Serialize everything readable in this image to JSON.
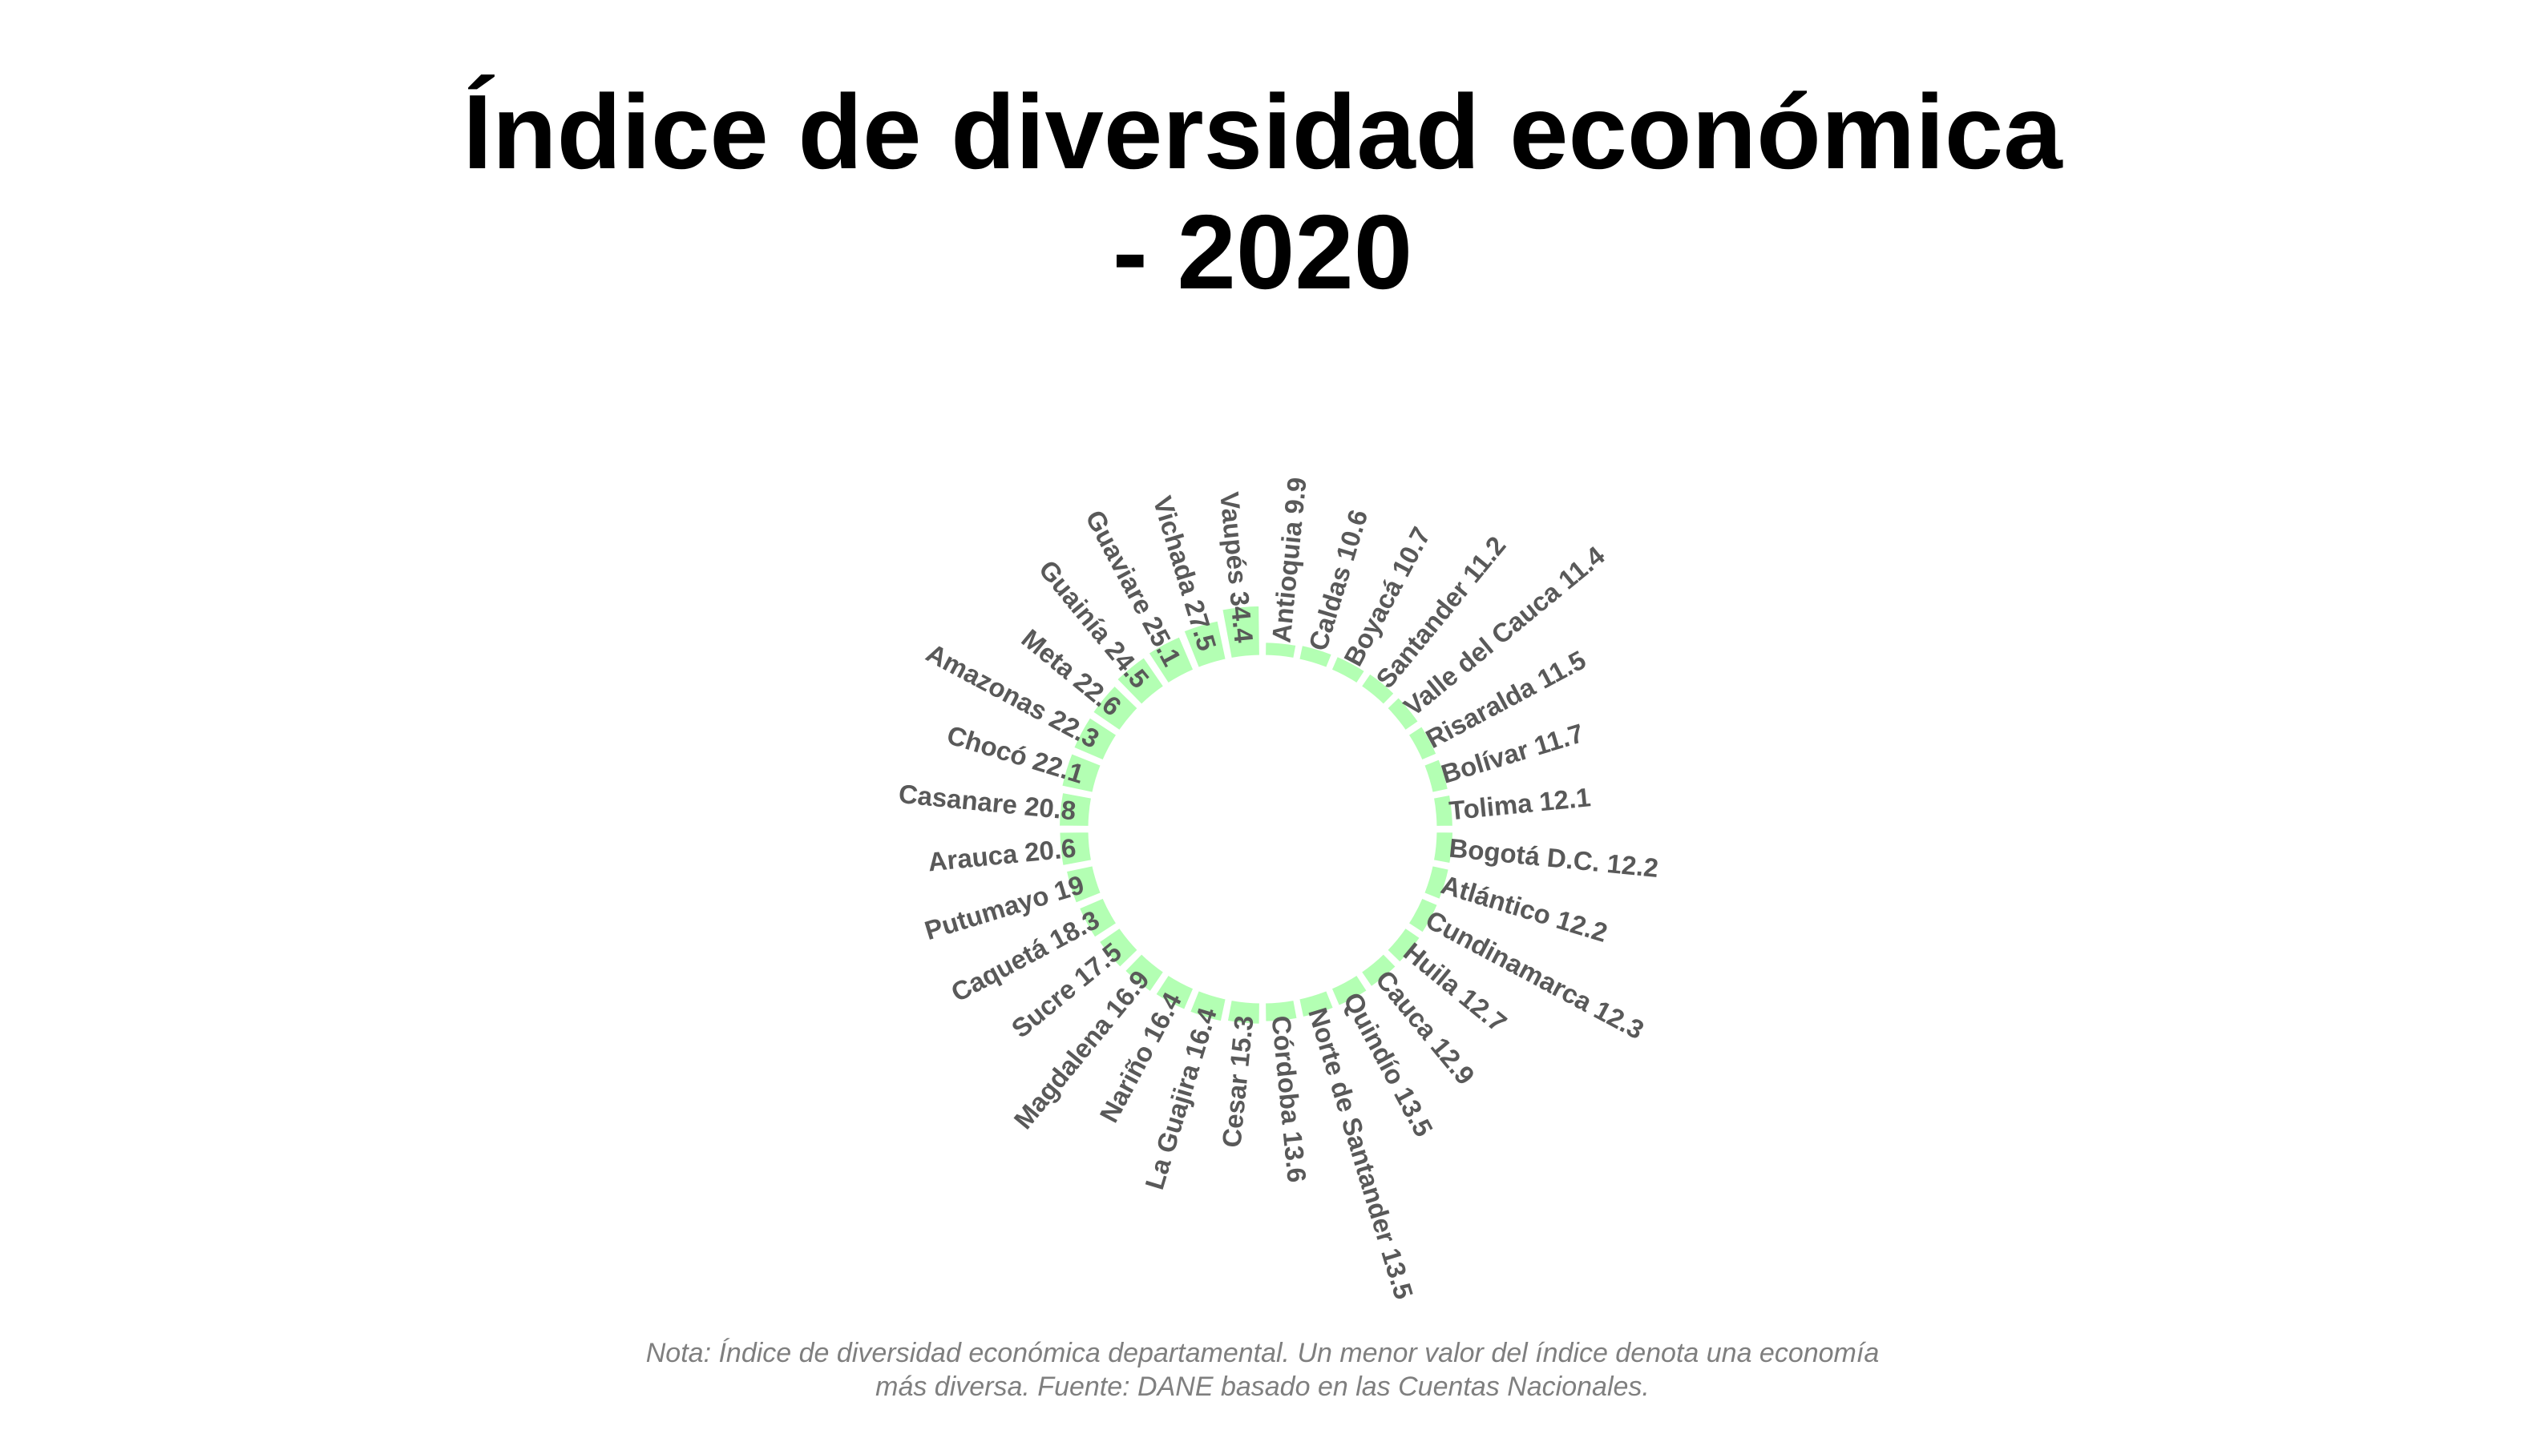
{
  "title_lines": [
    "Índice de diversidad económica",
    "- 2020"
  ],
  "caption_lines": [
    "Nota: Índice de diversidad económica departamental. Un menor valor del índice denota una economía",
    "más diversa. Fuente: DANE basado en las Cuentas Nacionales."
  ],
  "colors": {
    "bar": "#b3ffb3",
    "label": "#595959",
    "title": "#000000",
    "caption": "#7f7f7f"
  },
  "chart_data": {
    "type": "bar",
    "layout": "circular",
    "title": "Índice de diversidad económica - 2020",
    "categories": [
      "Antioquia",
      "Caldas",
      "Boyacá",
      "Santander",
      "Valle del Cauca",
      "Risaralda",
      "Bolívar",
      "Tolima",
      "Bogotá D.C.",
      "Atlántico",
      "Cundinamarca",
      "Huila",
      "Cauca",
      "Quindío",
      "Norte de Santander",
      "Córdoba",
      "Cesar",
      "La Guajira",
      "Nariño",
      "Magdalena",
      "Sucre",
      "Caquetá",
      "Putumayo",
      "Arauca",
      "Casanare",
      "Chocó",
      "Amazonas",
      "Meta",
      "Guainía",
      "Guaviare",
      "Vichada",
      "Vaupés"
    ],
    "values": [
      9.9,
      10.6,
      10.7,
      11.2,
      11.4,
      11.5,
      11.7,
      12.1,
      12.2,
      12.2,
      12.3,
      12.7,
      12.9,
      13.5,
      13.5,
      13.6,
      15.3,
      16.4,
      16.4,
      16.9,
      17.5,
      18.3,
      19,
      20.6,
      20.8,
      22.1,
      22.3,
      22.6,
      24.5,
      25.1,
      27.5,
      34.4
    ],
    "labels": [
      "Antioquia 9.9",
      "Caldas 10.6",
      "Boyacá 10.7",
      "Santander 11.2",
      "Valle del Cauca 11.4",
      "Risaralda 11.5",
      "Bolívar 11.7",
      "Tolima 12.1",
      "Bogotá D.C. 12.2",
      "Atlántico 12.2",
      "Cundinamarca 12.3",
      "Huila 12.7",
      "Cauca 12.9",
      "Quindío 13.5",
      "Norte de Santander 13.5",
      "Córdoba 13.6",
      "Cesar 15.3",
      "La Guajira 16.4",
      "Nariño 16.4",
      "Magdalena 16.9",
      "Sucre 17.5",
      "Caquetá 18.3",
      "Putumayo 19",
      "Arauca 20.6",
      "Casanare 20.8",
      "Chocó 22.1",
      "Amazonas 22.3",
      "Meta 22.6",
      "Guainía 24.5",
      "Guaviare 25.1",
      "Vichada 27.5",
      "Vaupés 34.4"
    ]
  }
}
